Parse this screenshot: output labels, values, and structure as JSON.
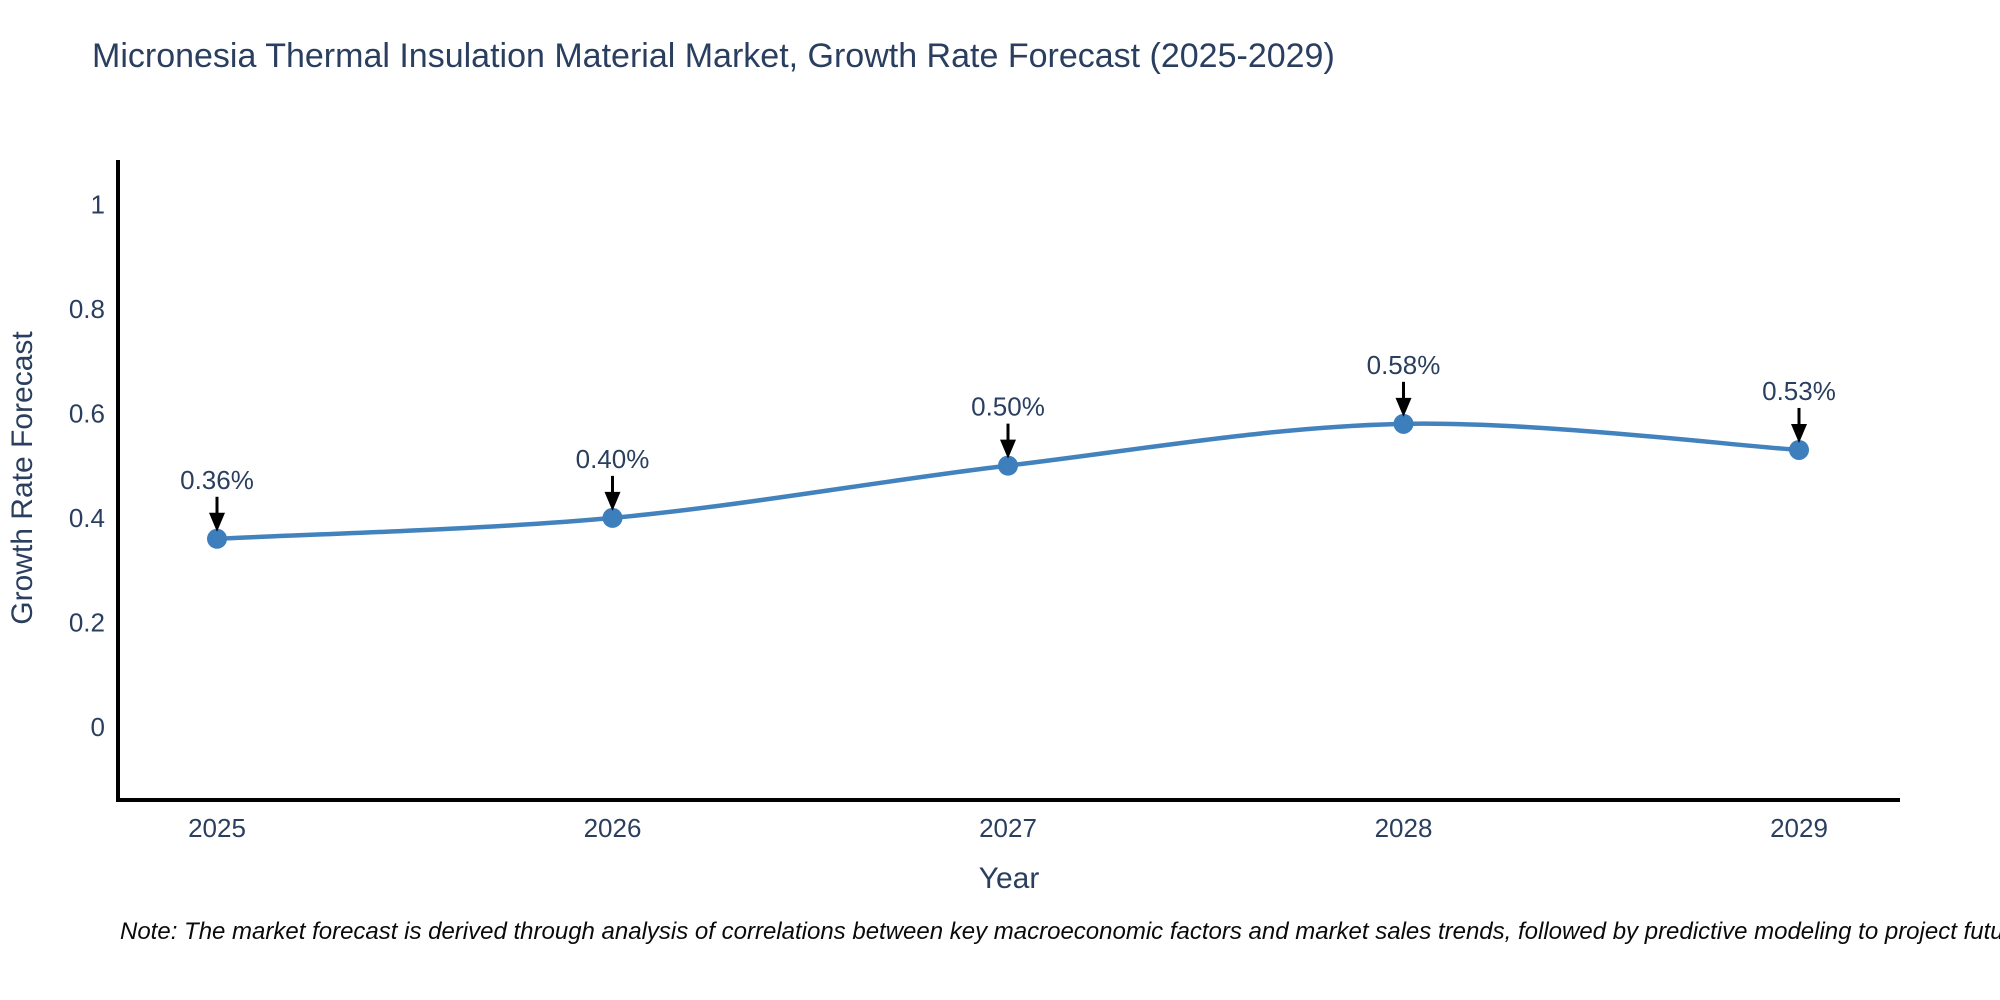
{
  "page": {
    "title": "Micronesia Thermal Insulation Material Market, Growth Rate Forecast (2025-2029)",
    "note": "Note: The market forecast is derived through analysis of correlations between key macroeconomic factors and market sales trends, followed by predictive modeling to project future sales"
  },
  "chart_data": {
    "type": "line",
    "title": "Micronesia Thermal Insulation Material Market, Growth Rate Forecast (2025-2029)",
    "categories": [
      "2025",
      "2026",
      "2027",
      "2028",
      "2029"
    ],
    "series": [
      {
        "name": "Growth Rate Forecast",
        "values": [
          0.36,
          0.4,
          0.5,
          0.58,
          0.53
        ]
      }
    ],
    "point_labels": [
      "0.36%",
      "0.40%",
      "0.50%",
      "0.58%",
      "0.53%"
    ],
    "xlabel": "Year",
    "ylabel": "Growth Rate Forecast",
    "yticks": [
      0,
      0.2,
      0.4,
      0.6,
      0.8,
      1
    ],
    "ylim": [
      -0.14,
      1.085
    ],
    "grid": false,
    "legend": "none",
    "line_shape": "spline",
    "annotation_style": "black down-arrow above each point",
    "colors": {
      "line": "#4383bd",
      "marker": "#3d7ebc",
      "axis": "#000000",
      "text": "#2a3f5f",
      "annotation_arrow": "#000000"
    }
  }
}
